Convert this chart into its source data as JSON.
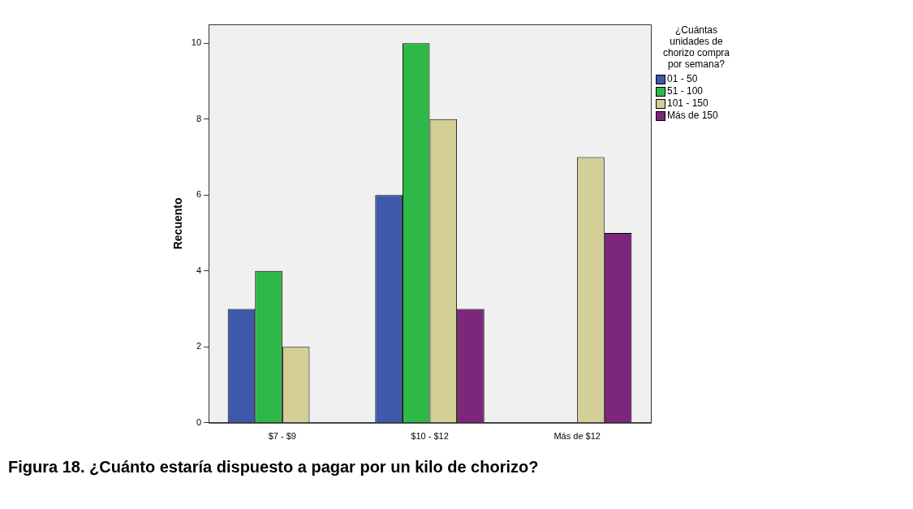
{
  "chart_data": {
    "type": "bar",
    "ylabel": "Recuento",
    "legend_title": "¿Cuántas unidades de chorizo compra por semana?",
    "legend": "right",
    "grid": false,
    "categories": [
      "$7 - $9",
      "$10 - $12",
      "Más de $12"
    ],
    "ylim": [
      0,
      10.5
    ],
    "yticks": [
      0,
      2,
      4,
      6,
      8,
      10
    ],
    "series": [
      {
        "name": "01 - 50",
        "color": "#3e58ac",
        "values": [
          3,
          6,
          null
        ]
      },
      {
        "name": "51 - 100",
        "color": "#2eb848",
        "values": [
          4,
          10,
          null
        ]
      },
      {
        "name": "101 - 150",
        "color": "#d4ce97",
        "values": [
          2,
          8,
          7
        ]
      },
      {
        "name": "Más de 150",
        "color": "#7c267c",
        "values": [
          null,
          3,
          5
        ]
      }
    ],
    "annotations": [
      "Figura 18. ¿Cuánto estaría dispuesto a pagar por un kilo de chorizo?"
    ]
  }
}
